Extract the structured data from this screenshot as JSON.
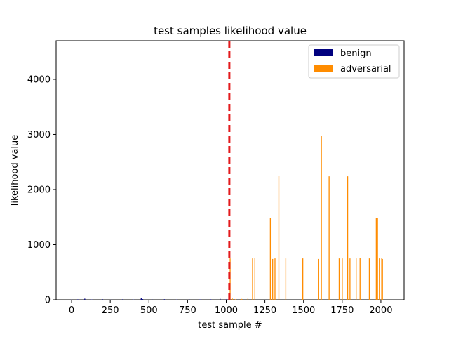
{
  "chart_data": {
    "type": "bar",
    "title": "test samples likelihood value",
    "xlabel": "test sample #",
    "ylabel": "likelihood value",
    "xlim": [
      -100,
      2150
    ],
    "ylim": [
      0,
      4700
    ],
    "xticks": [
      0,
      250,
      500,
      750,
      1000,
      1250,
      1500,
      1750,
      2000
    ],
    "yticks": [
      0,
      1000,
      2000,
      3000,
      4000
    ],
    "grid": false,
    "legend_position": "top-right",
    "threshold_line": {
      "x": 1020,
      "color": "#e31a1c",
      "style": "dashed"
    },
    "series": [
      {
        "name": "benign",
        "color": "#00007f",
        "points": [
          {
            "x": 0,
            "y": 5
          },
          {
            "x": 40,
            "y": 8
          },
          {
            "x": 85,
            "y": 20
          },
          {
            "x": 130,
            "y": 6
          },
          {
            "x": 200,
            "y": 10
          },
          {
            "x": 260,
            "y": 7
          },
          {
            "x": 330,
            "y": 9
          },
          {
            "x": 400,
            "y": 6
          },
          {
            "x": 450,
            "y": 25
          },
          {
            "x": 460,
            "y": 12
          },
          {
            "x": 520,
            "y": 8
          },
          {
            "x": 600,
            "y": 10
          },
          {
            "x": 680,
            "y": 6
          },
          {
            "x": 760,
            "y": 9
          },
          {
            "x": 830,
            "y": 7
          },
          {
            "x": 900,
            "y": 8
          },
          {
            "x": 960,
            "y": 18
          },
          {
            "x": 1000,
            "y": 9
          }
        ]
      },
      {
        "name": "adversarial",
        "color": "#ff8c00",
        "points": [
          {
            "x": 1025,
            "y": 750
          },
          {
            "x": 1040,
            "y": 20
          },
          {
            "x": 1060,
            "y": 10
          },
          {
            "x": 1100,
            "y": 15
          },
          {
            "x": 1140,
            "y": 20
          },
          {
            "x": 1170,
            "y": 750
          },
          {
            "x": 1185,
            "y": 760
          },
          {
            "x": 1285,
            "y": 1480
          },
          {
            "x": 1300,
            "y": 740
          },
          {
            "x": 1315,
            "y": 750
          },
          {
            "x": 1340,
            "y": 2250
          },
          {
            "x": 1385,
            "y": 750
          },
          {
            "x": 1495,
            "y": 750
          },
          {
            "x": 1595,
            "y": 740
          },
          {
            "x": 1615,
            "y": 2980
          },
          {
            "x": 1665,
            "y": 2240
          },
          {
            "x": 1730,
            "y": 750
          },
          {
            "x": 1750,
            "y": 750
          },
          {
            "x": 1785,
            "y": 2240
          },
          {
            "x": 1800,
            "y": 750
          },
          {
            "x": 1840,
            "y": 750
          },
          {
            "x": 1865,
            "y": 760
          },
          {
            "x": 1925,
            "y": 750
          },
          {
            "x": 1970,
            "y": 1490
          },
          {
            "x": 1978,
            "y": 1480
          },
          {
            "x": 1990,
            "y": 750
          },
          {
            "x": 2005,
            "y": 750
          },
          {
            "x": 2010,
            "y": 740
          }
        ]
      }
    ]
  }
}
